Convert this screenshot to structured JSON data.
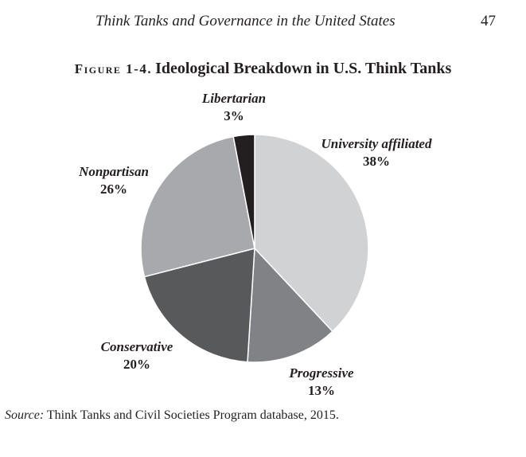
{
  "running_head": {
    "title": "Think Tanks and Governance in the United States",
    "page_number": "47"
  },
  "figure": {
    "label": "Figure 1-4.",
    "title": "Ideological Breakdown in U.S. Think Tanks"
  },
  "chart_data": {
    "type": "pie",
    "title": "Ideological Breakdown in U.S. Think Tanks",
    "slices": [
      {
        "label": "University affiliated",
        "value": 38,
        "pct_text": "38%",
        "color": "#d1d2d4"
      },
      {
        "label": "Progressive",
        "value": 13,
        "pct_text": "13%",
        "color": "#808285"
      },
      {
        "label": "Conservative",
        "value": 20,
        "pct_text": "20%",
        "color": "#58595b"
      },
      {
        "label": "Nonpartisan",
        "value": 26,
        "pct_text": "26%",
        "color": "#a7a9ac"
      },
      {
        "label": "Libertarian",
        "value": 3,
        "pct_text": "3%",
        "color": "#231f20"
      }
    ]
  },
  "source": {
    "label": "Source:",
    "text": " Think Tanks and Civil Societies Program database, 2015."
  }
}
